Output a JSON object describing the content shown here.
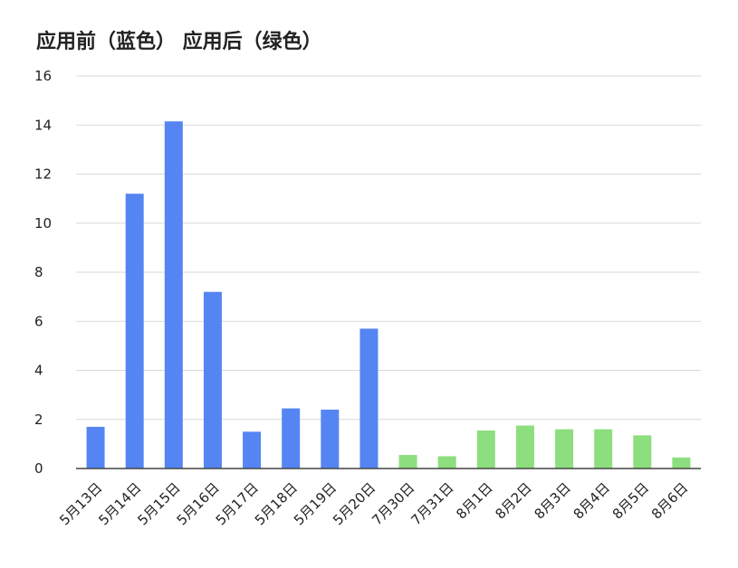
{
  "chart_data": {
    "type": "bar",
    "title": "应用前（蓝色） 应用后（绿色）",
    "xlabel": "",
    "ylabel": "",
    "ylim": [
      0,
      16
    ],
    "yticks": [
      0,
      2,
      4,
      6,
      8,
      10,
      12,
      14,
      16
    ],
    "grid": true,
    "categories": [
      "5月13日",
      "5月14日",
      "5月15日",
      "5月16日",
      "5月17日",
      "5月18日",
      "5月19日",
      "5月20日",
      "7月30日",
      "7月31日",
      "8月1日",
      "8月2日",
      "8月3日",
      "8月4日",
      "8月5日",
      "8月6日"
    ],
    "values": [
      1.7,
      11.2,
      14.15,
      7.2,
      1.5,
      2.45,
      2.4,
      5.7,
      0.55,
      0.5,
      1.55,
      1.75,
      1.6,
      1.6,
      1.35,
      0.45
    ],
    "bar_colors": [
      "#5585f2",
      "#5585f2",
      "#5585f2",
      "#5585f2",
      "#5585f2",
      "#5585f2",
      "#5585f2",
      "#5585f2",
      "#8cde7e",
      "#8cde7e",
      "#8cde7e",
      "#8cde7e",
      "#8cde7e",
      "#8cde7e",
      "#8cde7e",
      "#8cde7e"
    ],
    "colors": {
      "before": "#5585f2",
      "after": "#8cde7e",
      "grid": "#d9d9d9",
      "axis": "#444444",
      "text": "#222222"
    }
  }
}
